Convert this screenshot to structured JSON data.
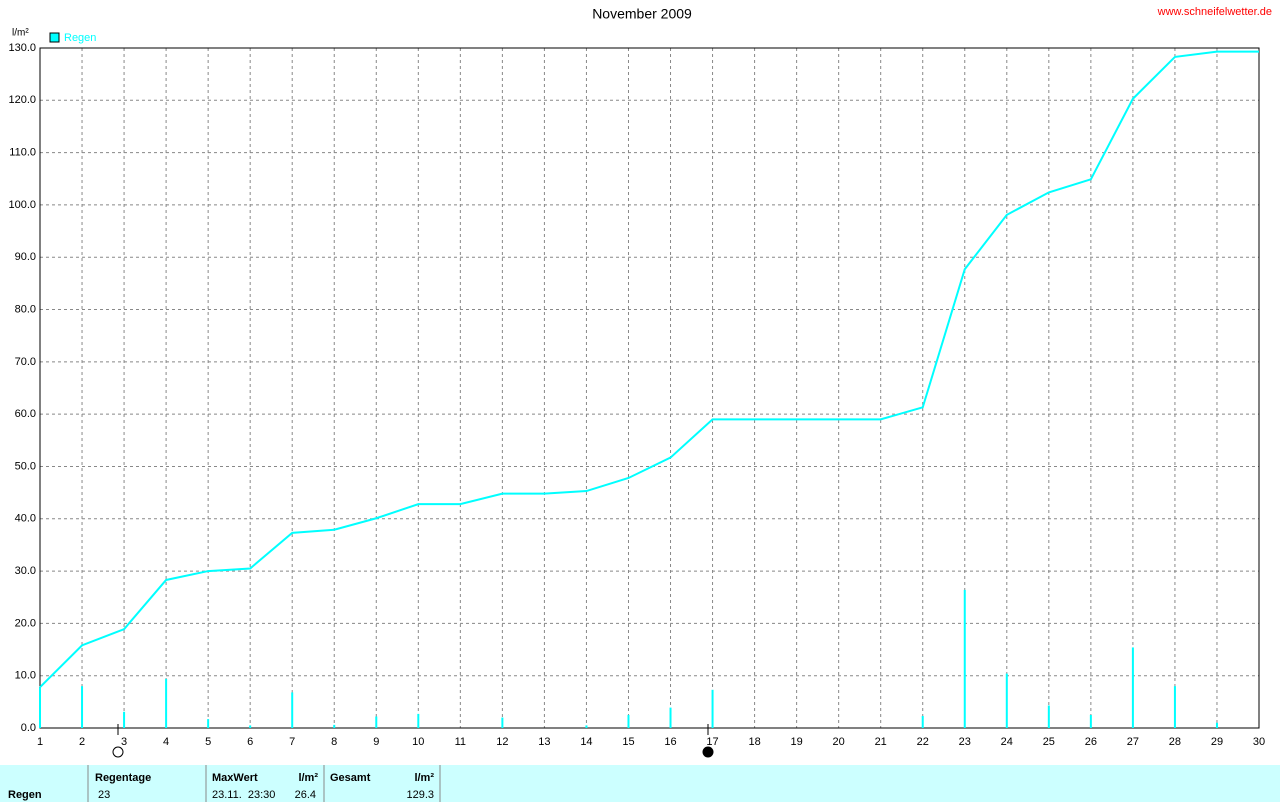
{
  "chart_data": {
    "type": "line",
    "title": "November 2009",
    "source": "www.schneifelwetter.de",
    "y_label": "l/m²",
    "x": [
      1,
      2,
      3,
      4,
      5,
      6,
      7,
      8,
      9,
      10,
      11,
      12,
      13,
      14,
      15,
      16,
      17,
      18,
      19,
      20,
      21,
      22,
      23,
      24,
      25,
      26,
      27,
      28,
      29,
      30
    ],
    "series": [
      {
        "name": "Regen",
        "color": "#00ffff",
        "values": [
          7.8,
          15.8,
          18.9,
          28.3,
          30.0,
          30.5,
          37.3,
          37.9,
          40.1,
          42.8,
          42.8,
          44.8,
          44.8,
          45.3,
          47.8,
          51.7,
          59.0,
          59.0,
          59.0,
          59.0,
          59.0,
          61.3,
          87.7,
          98.1,
          102.4,
          104.9,
          120.3,
          128.3,
          129.3,
          129.3
        ]
      },
      {
        "type": "bar",
        "color": "#00ffff",
        "values": [
          7.8,
          8.0,
          3.1,
          9.4,
          1.7,
          0.5,
          6.8,
          0.6,
          2.2,
          2.7,
          0,
          2.0,
          0,
          0.5,
          2.5,
          3.9,
          7.3,
          0,
          0,
          0,
          0,
          2.3,
          26.4,
          10.4,
          4.3,
          2.5,
          15.4,
          8.0,
          1.0,
          0
        ]
      }
    ],
    "xlim": [
      1,
      30
    ],
    "xticks": [
      1,
      2,
      3,
      4,
      5,
      6,
      7,
      8,
      9,
      10,
      11,
      12,
      13,
      14,
      15,
      16,
      17,
      18,
      19,
      20,
      21,
      22,
      23,
      24,
      25,
      26,
      27,
      28,
      29,
      30
    ],
    "ylim": [
      0,
      130
    ],
    "yticks": [
      {
        "value": 0,
        "label": "0.0"
      },
      {
        "value": 10,
        "label": "10.0"
      },
      {
        "value": 20,
        "label": "20.0"
      },
      {
        "value": 30,
        "label": "30.0"
      },
      {
        "value": 40,
        "label": "40.0"
      },
      {
        "value": 50,
        "label": "50.0"
      },
      {
        "value": 60,
        "label": "60.0"
      },
      {
        "value": 70,
        "label": "70.0"
      },
      {
        "value": 80,
        "label": "80.0"
      },
      {
        "value": 90,
        "label": "90.0"
      },
      {
        "value": 100,
        "label": "100.0"
      },
      {
        "value": 110,
        "label": "110.0"
      },
      {
        "value": 120,
        "label": "120.0"
      },
      {
        "value": 130,
        "label": "130.0"
      }
    ],
    "grid": true
  },
  "summary": {
    "row_label": "Regen",
    "days_header": "Regentage",
    "days": "23",
    "max_header": "MaxWert",
    "max_unit": "l/m²",
    "max_time": "23.11.  23:30",
    "max_value": "26.4",
    "total_header": "Gesamt",
    "total_unit": "l/m²",
    "total": "129.3"
  }
}
